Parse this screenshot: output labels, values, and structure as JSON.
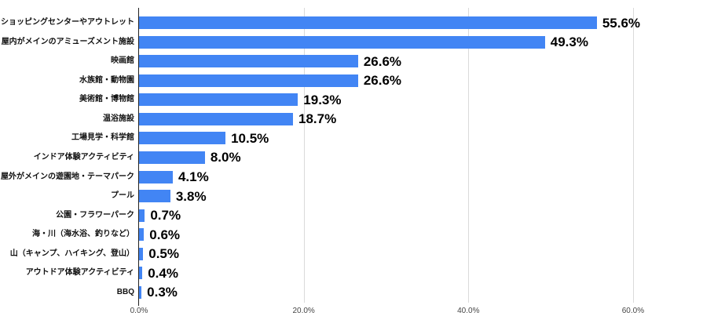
{
  "chart_data": {
    "type": "bar",
    "orientation": "horizontal",
    "categories": [
      "ショッピングセンターやアウトレット",
      "屋内がメインのアミューズメント施設",
      "映画館",
      "水族館・動物園",
      "美術館・博物館",
      "温浴施設",
      "工場見学・科学館",
      "インドア体験アクティビティ",
      "屋外がメインの遊園地・テーマパーク",
      "プール",
      "公園・フラワーパーク",
      "海・川（海水浴、釣りなど）",
      "山（キャンプ、ハイキング、登山）",
      "アウトドア体験アクティビティ",
      "BBQ"
    ],
    "values": [
      55.6,
      49.3,
      26.6,
      26.6,
      19.3,
      18.7,
      10.5,
      8.0,
      4.1,
      3.8,
      0.7,
      0.6,
      0.5,
      0.4,
      0.3
    ],
    "value_labels": [
      "55.6%",
      "49.3%",
      "26.6%",
      "26.6%",
      "19.3%",
      "18.7%",
      "10.5%",
      "8.0%",
      "4.1%",
      "3.8%",
      "0.7%",
      "0.6%",
      "0.5%",
      "0.4%",
      "0.3%"
    ],
    "x_ticks": [
      {
        "value": 0,
        "label": "0.0%"
      },
      {
        "value": 20,
        "label": "20.0%"
      },
      {
        "value": 40,
        "label": "40.0%"
      },
      {
        "value": 60,
        "label": "60.0%"
      }
    ],
    "xlim": [
      0,
      70.5
    ],
    "grid": true,
    "legend": "none",
    "data_labels": "outside-end",
    "bar_color": "#4285f4",
    "gridline_color": "#dadada",
    "axis_line_color": "#212121",
    "tick_label_color": "#464646"
  }
}
